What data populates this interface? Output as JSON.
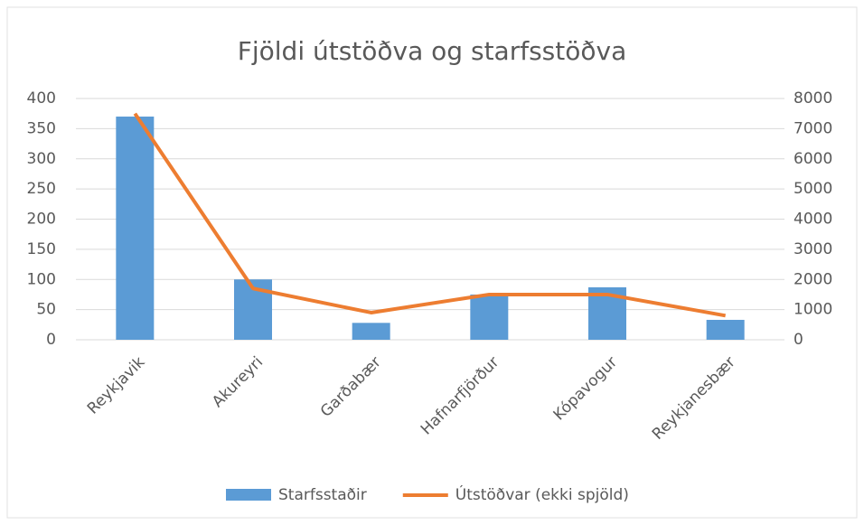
{
  "chart_data": {
    "type": "combo",
    "title": "Fjöldi útstöðva og starfsstöðva",
    "categories": [
      "Reykjavik",
      "Akureyri",
      "Garðabær",
      "Hafnarfjörður",
      "Kópavogur",
      "Reykjanesbær"
    ],
    "series": [
      {
        "name": "Starfsstaðir",
        "type": "bar",
        "color": "#5b9bd5",
        "values": [
          370,
          100,
          28,
          75,
          87,
          33
        ]
      },
      {
        "name": "Útstöðvar (ekki spjöld)",
        "type": "line",
        "axis": "y2",
        "color": "#ed7d31",
        "values": [
          7500,
          1700,
          900,
          1500,
          1500,
          800
        ]
      }
    ],
    "ylim": [
      0,
      400
    ],
    "yticks": [
      0,
      50,
      100,
      150,
      200,
      250,
      300,
      350,
      400
    ],
    "y2lim": [
      0,
      8000
    ],
    "y2ticks": [
      0,
      1000,
      2000,
      3000,
      4000,
      5000,
      6000,
      7000,
      8000
    ],
    "grid": true,
    "legend": "bottom"
  }
}
